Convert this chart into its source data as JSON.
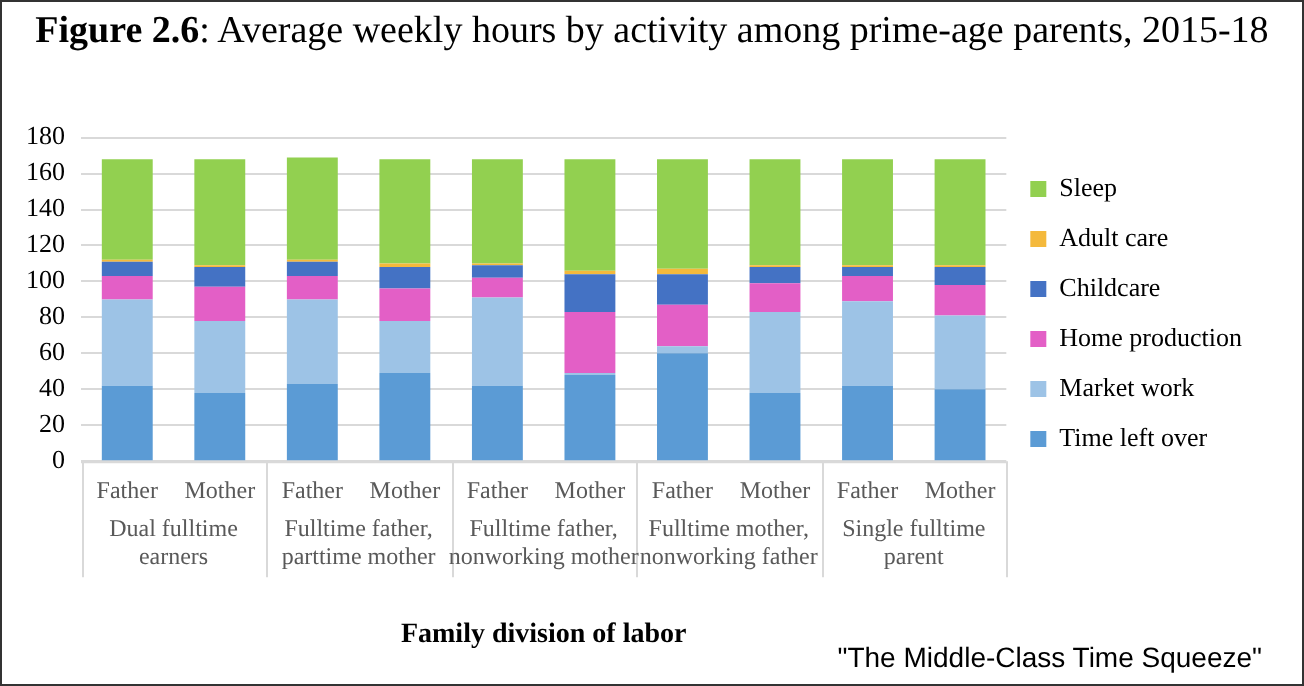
{
  "chart_data": {
    "type": "bar",
    "stacked": true,
    "title": "Figure 2.6: Average weekly hours by activity among prime-age parents, 2015-18",
    "xlabel": "Family division of labor",
    "categories": [
      "Father",
      "Mother",
      "Father",
      "Mother",
      "Father",
      "Mother",
      "Father",
      "Mother",
      "Father",
      "Mother"
    ],
    "series": [
      {
        "name": "Time left over",
        "color": "#5b9bd5",
        "values": [
          42,
          38,
          43,
          49,
          42,
          48,
          60,
          38,
          42,
          40
        ]
      },
      {
        "name": "Market work",
        "color": "#9dc3e6",
        "values": [
          48,
          40,
          47,
          29,
          49,
          1,
          4,
          45,
          47,
          41
        ]
      },
      {
        "name": "Home production",
        "color": "#e35fc6",
        "values": [
          13,
          19,
          13,
          18,
          11,
          34,
          23,
          16,
          14,
          17
        ]
      },
      {
        "name": "Childcare",
        "color": "#4472c4",
        "values": [
          8,
          11,
          8,
          12,
          7,
          21,
          17,
          9,
          5,
          10
        ]
      },
      {
        "name": "Adult care",
        "color": "#f4b93c",
        "values": [
          1,
          1,
          1,
          2,
          1,
          2,
          3,
          1,
          1,
          1
        ]
      },
      {
        "name": "Sleep",
        "color": "#92d050",
        "values": [
          56,
          59,
          57,
          58,
          58,
          62,
          61,
          59,
          59,
          59
        ]
      }
    ],
    "ylim": [
      0,
      180
    ],
    "yticks": [
      0,
      20,
      40,
      60,
      80,
      100,
      120,
      140,
      160,
      180
    ],
    "grid": "y",
    "legend": "right",
    "annotations": [
      "Dual fulltime earners",
      "Fulltime father, parttime mother",
      "Fulltime father, nonworking mother",
      "Fulltime mother, nonworking father",
      "Single fulltime parent",
      "\"The Middle-Class Time Squeeze\""
    ]
  }
}
